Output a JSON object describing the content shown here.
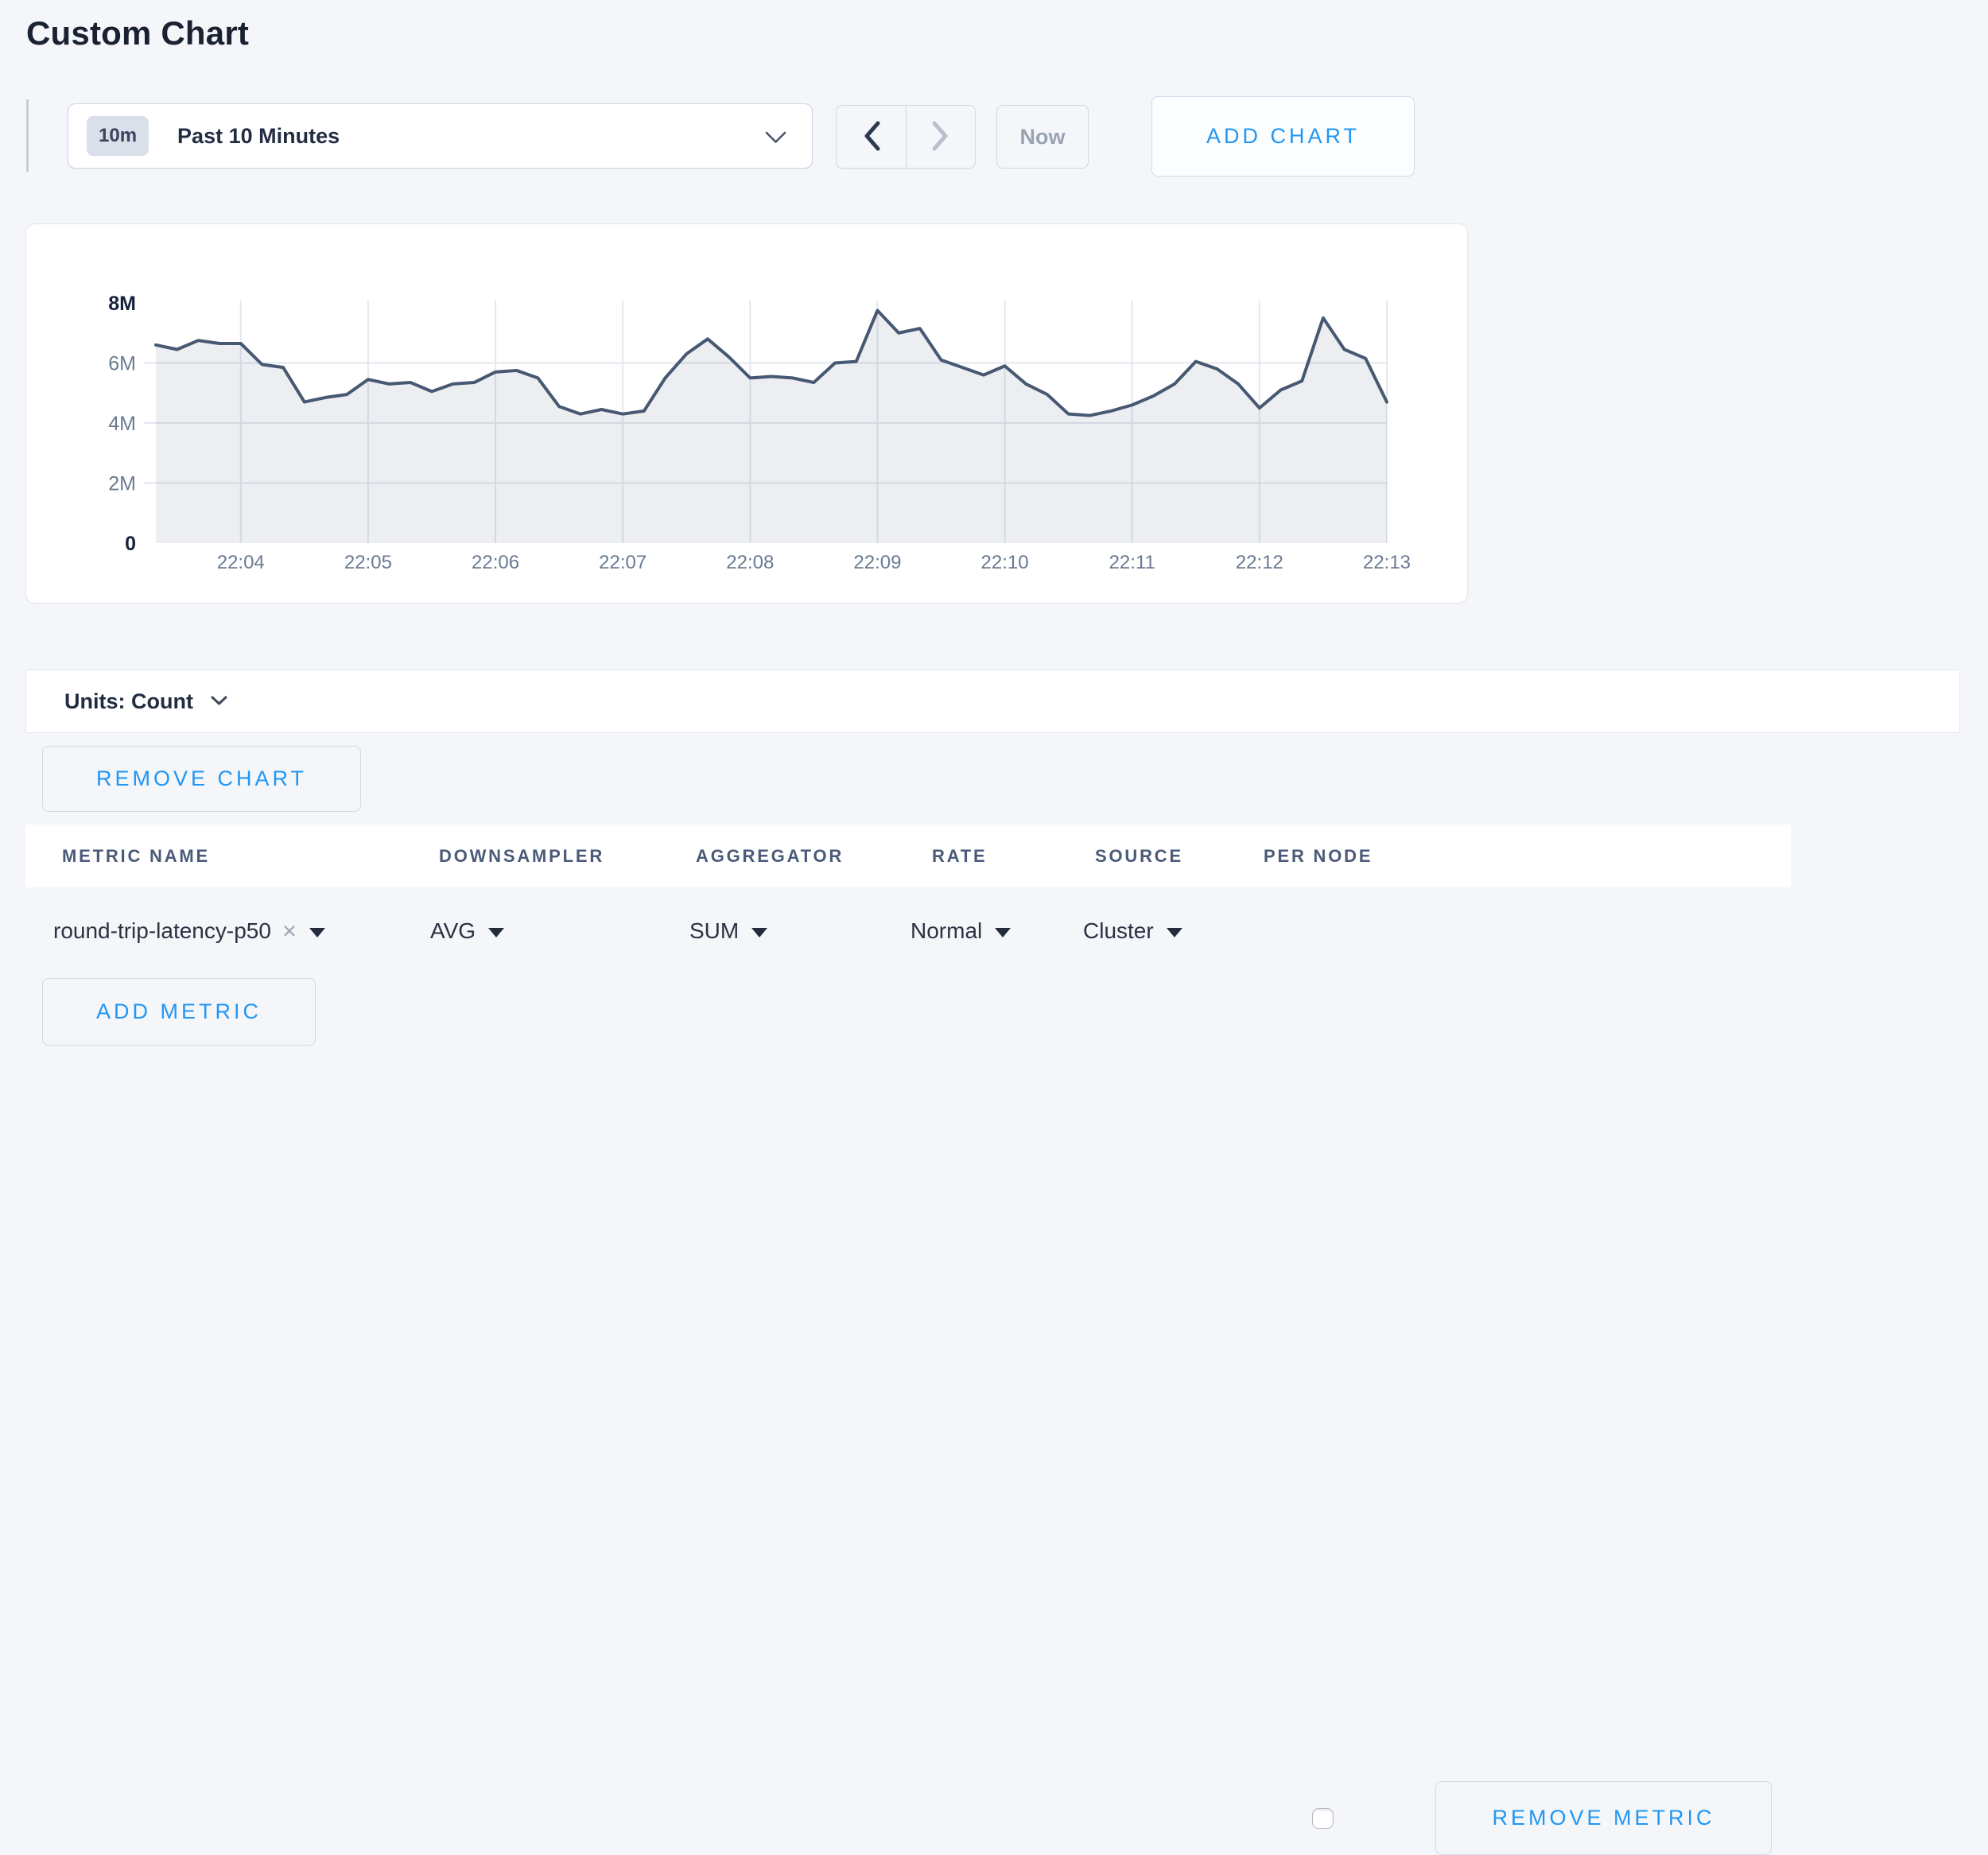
{
  "page": {
    "title": "Custom Chart",
    "background": "#f4f6fa",
    "accent_blue": "#2196f3"
  },
  "toolbar": {
    "time_range": {
      "badge": "10m",
      "label": "Past 10 Minutes"
    },
    "prev_enabled": true,
    "next_enabled": false,
    "now_label": "Now",
    "add_chart_label": "ADD CHART"
  },
  "chart_data": {
    "type": "area",
    "title": "",
    "unit": "Count",
    "x_start_time": "22:03:20",
    "x_interval_seconds": 10,
    "values_millions": [
      6.6,
      6.45,
      6.75,
      6.65,
      6.65,
      5.95,
      5.85,
      4.7,
      4.85,
      4.95,
      5.45,
      5.3,
      5.35,
      5.05,
      5.3,
      5.35,
      5.7,
      5.75,
      5.5,
      4.55,
      4.3,
      4.45,
      4.3,
      4.4,
      5.5,
      6.3,
      6.8,
      6.2,
      5.5,
      5.55,
      5.5,
      5.35,
      6.0,
      6.05,
      7.75,
      7.0,
      7.15,
      6.1,
      5.85,
      5.6,
      5.9,
      5.3,
      4.95,
      4.3,
      4.25,
      4.4,
      4.6,
      4.9,
      5.3,
      6.05,
      5.8,
      5.3,
      4.5,
      5.1,
      5.4,
      7.5,
      6.45,
      6.15,
      4.7
    ],
    "x_tick_labels": [
      "22:04",
      "22:05",
      "22:06",
      "22:07",
      "22:08",
      "22:09",
      "22:10",
      "22:11",
      "22:12",
      "22:13"
    ],
    "x_tick_indices": [
      4,
      10,
      16,
      22,
      28,
      34,
      40,
      46,
      52,
      58
    ],
    "y_tick_labels": [
      "0",
      "2M",
      "4M",
      "6M",
      "8M"
    ],
    "y_tick_values": [
      0,
      2,
      4,
      6,
      8
    ],
    "ylim": [
      0,
      8
    ],
    "grid": true,
    "legend_position": "none",
    "line_color": "#475872",
    "fill_color": "rgba(71,88,114,0.10)",
    "grid_color": "#e3e8ef",
    "axis_label_color": "#6b7a93",
    "axis_label_bold_color": "#17233c"
  },
  "units_bar": {
    "label": "Units: Count"
  },
  "chart_actions": {
    "remove_chart_label": "REMOVE CHART"
  },
  "metrics_table": {
    "columns": [
      "METRIC NAME",
      "DOWNSAMPLER",
      "AGGREGATOR",
      "RATE",
      "SOURCE",
      "PER NODE"
    ],
    "rows": [
      {
        "metric_name": "round-trip-latency-p50",
        "downsampler": "AVG",
        "aggregator": "SUM",
        "rate": "Normal",
        "source": "Cluster",
        "per_node_checked": false,
        "remove_label": "REMOVE METRIC"
      }
    ],
    "add_metric_label": "ADD METRIC"
  },
  "icons": {
    "time_range_chevron": "chevron-down-icon",
    "prev": "chevron-left-icon",
    "next": "chevron-right-icon",
    "units_chevron": "chevron-down-icon",
    "dropdown_caret": "caret-down-icon",
    "remove_metric_x": "close-icon"
  }
}
